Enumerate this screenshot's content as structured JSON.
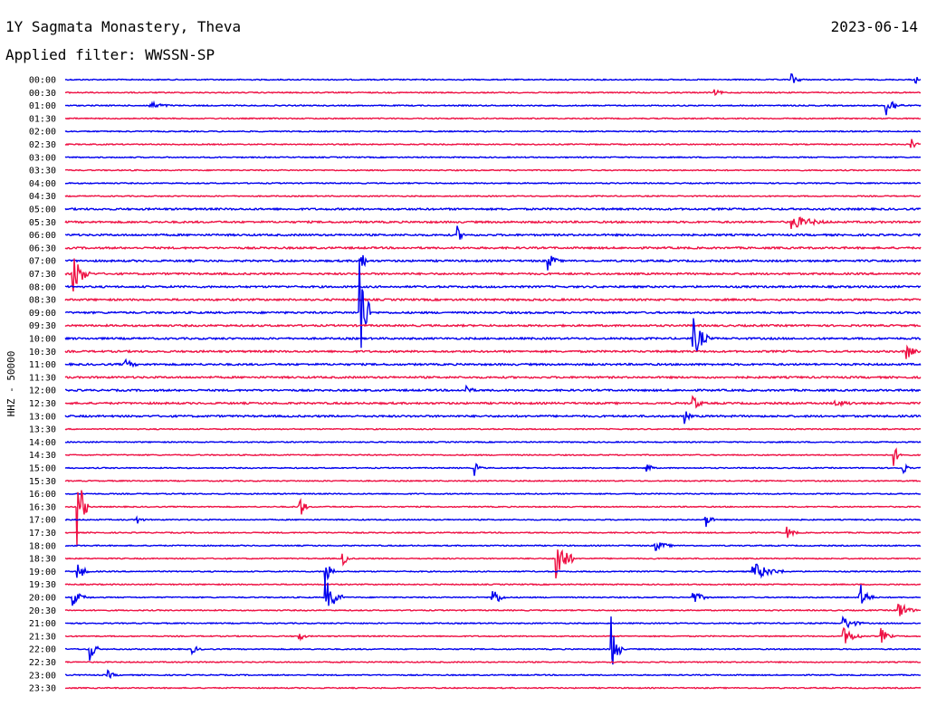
{
  "header": {
    "station": "1Y Sagmata Monastery, Theva",
    "date": "2023-06-14",
    "filter": "Applied filter: WWSSN-SP"
  },
  "chart_data": {
    "type": "line",
    "subtype": "helicorder",
    "ylabel": "HHZ - 50000",
    "row_labels": [
      "00:00",
      "00:30",
      "01:00",
      "01:30",
      "02:00",
      "02:30",
      "03:00",
      "03:30",
      "04:00",
      "04:30",
      "05:00",
      "05:30",
      "06:00",
      "06:30",
      "07:00",
      "07:30",
      "08:00",
      "08:30",
      "09:00",
      "09:30",
      "10:00",
      "10:30",
      "11:00",
      "11:30",
      "12:00",
      "12:30",
      "13:00",
      "13:30",
      "14:00",
      "14:30",
      "15:00",
      "15:30",
      "16:00",
      "16:30",
      "17:00",
      "17:30",
      "18:00",
      "18:30",
      "19:00",
      "19:30",
      "20:00",
      "20:30",
      "21:00",
      "21:30",
      "22:00",
      "22:30",
      "23:00",
      "23:30"
    ],
    "colors": [
      "#0000ee",
      "#ee1144"
    ],
    "events": [
      {
        "row": 0,
        "x": 0.85,
        "amp": 6,
        "len": 0.015
      },
      {
        "row": 0,
        "x": 0.995,
        "amp": 4,
        "len": 0.01
      },
      {
        "row": 1,
        "x": 0.76,
        "amp": 3,
        "len": 0.02
      },
      {
        "row": 2,
        "x": 0.1,
        "amp": 4,
        "len": 0.035
      },
      {
        "row": 2,
        "x": 0.96,
        "amp": 12,
        "len": 0.02
      },
      {
        "row": 5,
        "x": 0.99,
        "amp": 6,
        "len": 0.01
      },
      {
        "row": 11,
        "x": 0.85,
        "amp": 8,
        "len": 0.05
      },
      {
        "row": 12,
        "x": 0.46,
        "amp": 7,
        "len": 0.01
      },
      {
        "row": 14,
        "x": 0.345,
        "amp": 15,
        "len": 0.01
      },
      {
        "row": 14,
        "x": 0.565,
        "amp": 10,
        "len": 0.015
      },
      {
        "row": 15,
        "x": 0.01,
        "amp": 22,
        "len": 0.02
      },
      {
        "row": 18,
        "x": 0.345,
        "amp": 70,
        "len": 0.012
      },
      {
        "row": 20,
        "x": 0.735,
        "amp": 22,
        "len": 0.02
      },
      {
        "row": 21,
        "x": 0.985,
        "amp": 8,
        "len": 0.015
      },
      {
        "row": 22,
        "x": 0.07,
        "amp": 6,
        "len": 0.02
      },
      {
        "row": 24,
        "x": 0.47,
        "amp": 8,
        "len": 0.01
      },
      {
        "row": 25,
        "x": 0.735,
        "amp": 8,
        "len": 0.015
      },
      {
        "row": 25,
        "x": 0.9,
        "amp": 3,
        "len": 0.07
      },
      {
        "row": 26,
        "x": 0.725,
        "amp": 7,
        "len": 0.01
      },
      {
        "row": 29,
        "x": 0.97,
        "amp": 9,
        "len": 0.01
      },
      {
        "row": 30,
        "x": 0.48,
        "amp": 6,
        "len": 0.01
      },
      {
        "row": 30,
        "x": 0.68,
        "amp": 7,
        "len": 0.01
      },
      {
        "row": 30,
        "x": 0.98,
        "amp": 6,
        "len": 0.01
      },
      {
        "row": 33,
        "x": 0.015,
        "amp": 40,
        "len": 0.012
      },
      {
        "row": 33,
        "x": 0.275,
        "amp": 12,
        "len": 0.01
      },
      {
        "row": 34,
        "x": 0.085,
        "amp": 5,
        "len": 0.01
      },
      {
        "row": 34,
        "x": 0.75,
        "amp": 9,
        "len": 0.01
      },
      {
        "row": 35,
        "x": 0.845,
        "amp": 6,
        "len": 0.015
      },
      {
        "row": 36,
        "x": 0.69,
        "amp": 6,
        "len": 0.025
      },
      {
        "row": 37,
        "x": 0.575,
        "amp": 28,
        "len": 0.02
      },
      {
        "row": 37,
        "x": 0.325,
        "amp": 8,
        "len": 0.01
      },
      {
        "row": 38,
        "x": 0.015,
        "amp": 10,
        "len": 0.015
      },
      {
        "row": 38,
        "x": 0.805,
        "amp": 10,
        "len": 0.04
      },
      {
        "row": 38,
        "x": 0.305,
        "amp": 20,
        "len": 0.01
      },
      {
        "row": 40,
        "x": 0.01,
        "amp": 8,
        "len": 0.02
      },
      {
        "row": 40,
        "x": 0.305,
        "amp": 20,
        "len": 0.02
      },
      {
        "row": 40,
        "x": 0.5,
        "amp": 12,
        "len": 0.015
      },
      {
        "row": 40,
        "x": 0.735,
        "amp": 7,
        "len": 0.02
      },
      {
        "row": 40,
        "x": 0.93,
        "amp": 15,
        "len": 0.015
      },
      {
        "row": 41,
        "x": 0.975,
        "amp": 10,
        "len": 0.02
      },
      {
        "row": 42,
        "x": 0.91,
        "amp": 8,
        "len": 0.025
      },
      {
        "row": 43,
        "x": 0.91,
        "amp": 10,
        "len": 0.025
      },
      {
        "row": 43,
        "x": 0.955,
        "amp": 8,
        "len": 0.015
      },
      {
        "row": 43,
        "x": 0.275,
        "amp": 5,
        "len": 0.01
      },
      {
        "row": 44,
        "x": 0.03,
        "amp": 15,
        "len": 0.01
      },
      {
        "row": 44,
        "x": 0.64,
        "amp": 26,
        "len": 0.012
      },
      {
        "row": 44,
        "x": 0.15,
        "amp": 4,
        "len": 0.015
      },
      {
        "row": 46,
        "x": 0.05,
        "amp": 5,
        "len": 0.015
      }
    ]
  }
}
